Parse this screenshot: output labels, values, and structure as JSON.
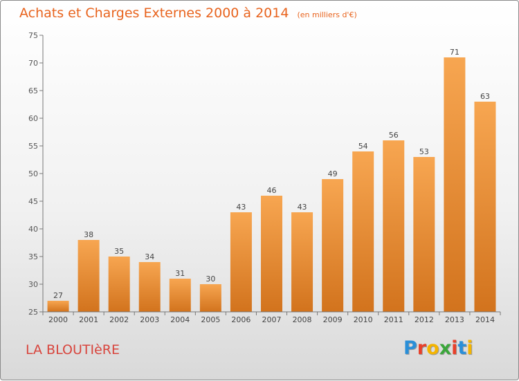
{
  "title": "Achats et Charges Externes 2000 à 2014",
  "unit_note": "(en milliers d'€)",
  "commune": "LA BLOUTIèRE",
  "brand": {
    "text": "Proxiti",
    "letters": [
      {
        "ch": "P",
        "color": "#2a8fd8"
      },
      {
        "ch": "r",
        "color": "#e8402a"
      },
      {
        "ch": "o",
        "color": "#f4b400"
      },
      {
        "ch": "x",
        "color": "#3aa63a"
      },
      {
        "ch": "i",
        "color": "#e8402a"
      },
      {
        "ch": "t",
        "color": "#2a8fd8"
      },
      {
        "ch": "i",
        "color": "#f4b400"
      }
    ]
  },
  "colors": {
    "title": "#e8631d",
    "commune": "#d8443c",
    "bar_light": "#f7a651",
    "bar_dark": "#d2731d",
    "axis": "#777777"
  },
  "chart_data": {
    "type": "bar",
    "title": "Achats et Charges Externes 2000 à 2014",
    "subtitle": "(en milliers d'€)",
    "categories": [
      "2000",
      "2001",
      "2002",
      "2003",
      "2004",
      "2005",
      "2006",
      "2007",
      "2008",
      "2009",
      "2010",
      "2011",
      "2012",
      "2013",
      "2014"
    ],
    "values": [
      27,
      38,
      35,
      34,
      31,
      30,
      43,
      46,
      43,
      49,
      54,
      56,
      53,
      71,
      63
    ],
    "ylim": [
      25,
      75
    ],
    "yticks": [
      25,
      30,
      35,
      40,
      45,
      50,
      55,
      60,
      65,
      70,
      75
    ],
    "grid": false,
    "data_labels": true
  }
}
